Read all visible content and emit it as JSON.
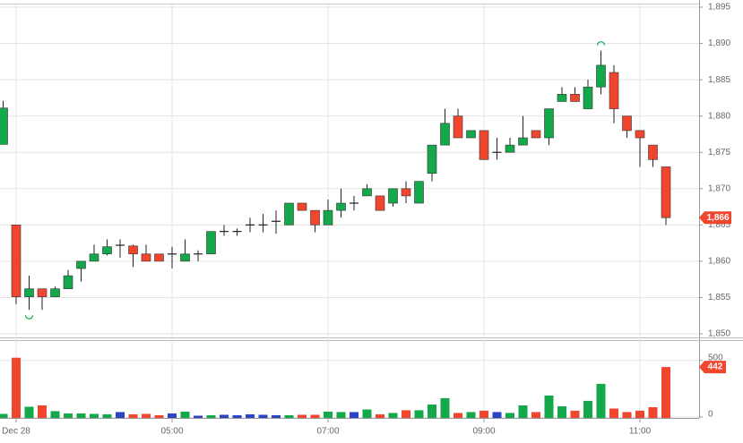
{
  "chart_data": {
    "type": "candlestick",
    "categories": [
      null,
      "Dec 28",
      null,
      null,
      null,
      null,
      null,
      null,
      null,
      null,
      null,
      null,
      null,
      "05:00",
      null,
      null,
      null,
      null,
      null,
      null,
      null,
      null,
      null,
      null,
      null,
      "07:00",
      null,
      null,
      null,
      null,
      null,
      null,
      null,
      null,
      null,
      null,
      null,
      "09:00",
      null,
      null,
      null,
      null,
      null,
      null,
      null,
      null,
      null,
      null,
      null,
      "11:00",
      null,
      null
    ],
    "open": [
      1876.1,
      1865,
      1855.1,
      1856.2,
      1855.1,
      1856.2,
      1859,
      1860,
      1861,
      1862.2,
      1862.1,
      1861,
      1861,
      1861,
      1860,
      1861,
      1861,
      1864.1,
      1864.1,
      1865,
      1865,
      1865.5,
      1865,
      1868,
      1867,
      1865,
      1867,
      1868,
      1869,
      1869,
      1868,
      1870,
      1868,
      1872.1,
      1876,
      1880,
      1877,
      1878,
      1875,
      1875,
      1876,
      1878,
      1877,
      1882,
      1883,
      1881,
      1884,
      1886,
      1880,
      1878,
      1876,
      1873
    ],
    "high": [
      1882.1,
      1865,
      1858,
      1856.2,
      1856.5,
      1858.8,
      1860,
      1862.3,
      1863,
      1863,
      1862.3,
      1862.3,
      1861,
      1862,
      1863,
      1861.5,
      1864.1,
      1865,
      1864.5,
      1866,
      1866.5,
      1867,
      1868,
      1868,
      1867,
      1868.5,
      1870,
      1869,
      1870.6,
      1869,
      1870,
      1871,
      1871,
      1876,
      1881,
      1881,
      1878,
      1878,
      1877,
      1877,
      1880,
      1878,
      1881,
      1884,
      1884,
      1885,
      1889,
      1887,
      1880,
      1878,
      1876,
      1873
    ],
    "low": [
      1876.1,
      1854.1,
      1853.3,
      1853.3,
      1855.1,
      1856.2,
      1857.2,
      1860,
      1860.8,
      1860.5,
      1859.2,
      1860,
      1860,
      1859,
      1860,
      1860,
      1861,
      1863.5,
      1863.5,
      1864,
      1864,
      1863.8,
      1865,
      1867,
      1864,
      1865,
      1866,
      1867,
      1869,
      1867,
      1867.5,
      1868,
      1868,
      1871,
      1876,
      1877,
      1877,
      1874,
      1874,
      1875,
      1876,
      1877,
      1876,
      1882,
      1882,
      1881,
      1883,
      1879,
      1877,
      1873,
      1873,
      1865
    ],
    "close": [
      1881.1,
      1855.1,
      1856.2,
      1855.1,
      1856.2,
      1858,
      1860,
      1861,
      1862,
      1862.2,
      1861,
      1860,
      1860,
      1861,
      1861,
      1861,
      1864.1,
      1864.1,
      1864.1,
      1865,
      1865,
      1865.5,
      1868,
      1867,
      1865,
      1867,
      1868,
      1868,
      1870,
      1867,
      1870,
      1869,
      1871,
      1876,
      1879,
      1877,
      1878,
      1874,
      1875,
      1876,
      1877,
      1877,
      1881,
      1883,
      1882,
      1884,
      1887,
      1881,
      1878,
      1877,
      1874,
      1866
    ],
    "volume": [
      28,
      524,
      91,
      103,
      52,
      32,
      32,
      28,
      24,
      44,
      24,
      28,
      16,
      32,
      48,
      12,
      16,
      20,
      16,
      24,
      20,
      16,
      16,
      20,
      20,
      48,
      44,
      44,
      67,
      24,
      36,
      60,
      60,
      111,
      167,
      36,
      44,
      56,
      44,
      36,
      103,
      44,
      190,
      95,
      56,
      143,
      293,
      75,
      44,
      56,
      87,
      442
    ],
    "ylim": [
      1850,
      1895
    ],
    "yticks": [
      {
        "value": 1850,
        "label": "1,850"
      },
      {
        "value": 1855,
        "label": "1,855"
      },
      {
        "value": 1860,
        "label": "1,860"
      },
      {
        "value": 1865,
        "label": "1,865"
      },
      {
        "value": 1870,
        "label": "1,870"
      },
      {
        "value": 1875,
        "label": "1,875"
      },
      {
        "value": 1880,
        "label": "1,880"
      },
      {
        "value": 1885,
        "label": "1,885"
      },
      {
        "value": 1890,
        "label": "1,890"
      },
      {
        "value": 1895,
        "label": "1,895"
      }
    ],
    "y2lim": [
      0,
      680
    ],
    "y2ticks": [
      0,
      500
    ],
    "last_price": {
      "value": 1866,
      "label": "1,866"
    },
    "up_color": "#13a84a",
    "down_color": "#f0462e",
    "flat_color": "#2a44c4",
    "grid": true,
    "mark_extremes": true
  }
}
